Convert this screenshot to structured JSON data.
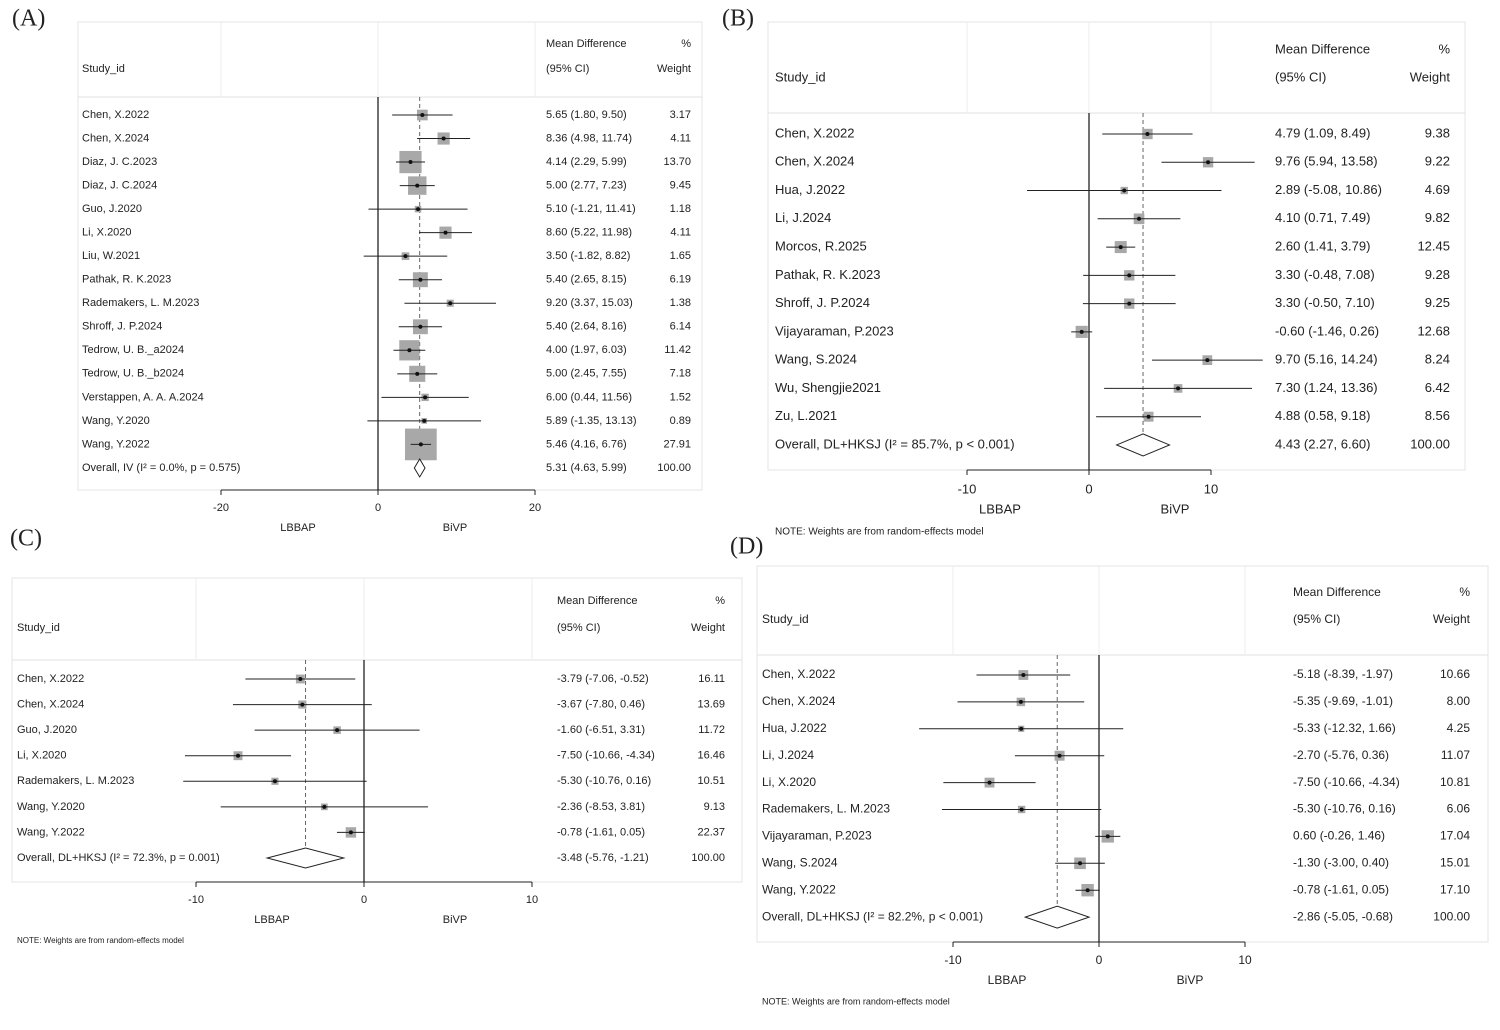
{
  "chart_data": [
    {
      "type": "forest",
      "panel_label": "(A)",
      "study_header": "Study_id",
      "effect_header": "Mean Difference",
      "effect_subheader": "(95% CI)",
      "weight_header": "%",
      "weight_subheader": "Weight",
      "xlim": [
        -20,
        20
      ],
      "xticks": [
        -20,
        0,
        20
      ],
      "left_label": "LBBAP",
      "right_label": "BiVP",
      "studies": [
        {
          "name": "Chen, X.2022",
          "value": 5.65,
          "lower": 1.8,
          "upper": 9.5,
          "ci_label": "5.65 (1.80, 9.50)",
          "weight": 3.17
        },
        {
          "name": "Chen, X.2024",
          "value": 8.36,
          "lower": 4.98,
          "upper": 11.74,
          "ci_label": "8.36 (4.98, 11.74)",
          "weight": 4.11
        },
        {
          "name": "Diaz, J. C.2023",
          "value": 4.14,
          "lower": 2.29,
          "upper": 5.99,
          "ci_label": "4.14 (2.29, 5.99)",
          "weight": 13.7,
          "weight_label": "13.70"
        },
        {
          "name": "Diaz, J. C.2024",
          "value": 5.0,
          "lower": 2.77,
          "upper": 7.23,
          "ci_label": "5.00 (2.77, 7.23)",
          "weight": 9.45
        },
        {
          "name": "Guo, J.2020",
          "value": 5.1,
          "lower": -1.21,
          "upper": 11.41,
          "ci_label": "5.10 (-1.21, 11.41)",
          "weight": 1.18
        },
        {
          "name": "Li, X.2020",
          "value": 8.6,
          "lower": 5.22,
          "upper": 11.98,
          "ci_label": "8.60 (5.22, 11.98)",
          "weight": 4.11
        },
        {
          "name": "Liu, W.2021",
          "value": 3.5,
          "lower": -1.82,
          "upper": 8.82,
          "ci_label": "3.50 (-1.82, 8.82)",
          "weight": 1.65
        },
        {
          "name": "Pathak, R. K.2023",
          "value": 5.4,
          "lower": 2.65,
          "upper": 8.15,
          "ci_label": "5.40 (2.65, 8.15)",
          "weight": 6.19
        },
        {
          "name": "Rademakers, L. M.2023",
          "value": 9.2,
          "lower": 3.37,
          "upper": 15.03,
          "ci_label": "9.20 (3.37, 15.03)",
          "weight": 1.38
        },
        {
          "name": "Shroff, J. P.2024",
          "value": 5.4,
          "lower": 2.64,
          "upper": 8.16,
          "ci_label": "5.40 (2.64, 8.16)",
          "weight": 6.14
        },
        {
          "name": "Tedrow, U. B._a2024",
          "value": 4.0,
          "lower": 1.97,
          "upper": 6.03,
          "ci_label": "4.00 (1.97, 6.03)",
          "weight": 11.42
        },
        {
          "name": "Tedrow, U. B._b2024",
          "value": 5.0,
          "lower": 2.45,
          "upper": 7.55,
          "ci_label": "5.00 (2.45, 7.55)",
          "weight": 7.18
        },
        {
          "name": "Verstappen, A. A. A.2024",
          "value": 6.0,
          "lower": 0.44,
          "upper": 11.56,
          "ci_label": "6.00 (0.44, 11.56)",
          "weight": 1.52
        },
        {
          "name": "Wang, Y.2020",
          "value": 5.89,
          "lower": -1.35,
          "upper": 13.13,
          "ci_label": "5.89 (-1.35, 13.13)",
          "weight": 0.89
        },
        {
          "name": "Wang, Y.2022",
          "value": 5.46,
          "lower": 4.16,
          "upper": 6.76,
          "ci_label": "5.46 (4.16, 6.76)",
          "weight": 27.91
        }
      ],
      "overall": {
        "label": "Overall, IV (I² = 0.0%, p = 0.575)",
        "value": 5.31,
        "lower": 4.63,
        "upper": 5.99,
        "ci_label": "5.31 (4.63, 5.99)",
        "weight": 100,
        "weight_label": "100.00"
      }
    },
    {
      "type": "forest",
      "panel_label": "(B)",
      "study_header": "Study_id",
      "effect_header": "Mean Difference",
      "effect_subheader": "(95% CI)",
      "weight_header": "%",
      "weight_subheader": "Weight",
      "xlim": [
        -10,
        10
      ],
      "xticks": [
        -10,
        0,
        10
      ],
      "left_label": "LBBAP",
      "right_label": "BiVP",
      "note": "NOTE: Weights are from random-effects model",
      "studies": [
        {
          "name": "Chen, X.2022",
          "value": 4.79,
          "lower": 1.09,
          "upper": 8.49,
          "ci_label": "4.79 (1.09, 8.49)",
          "weight": 9.38
        },
        {
          "name": "Chen, X.2024",
          "value": 9.76,
          "lower": 5.94,
          "upper": 13.58,
          "ci_label": "9.76 (5.94, 13.58)",
          "weight": 9.22
        },
        {
          "name": "Hua, J.2022",
          "value": 2.89,
          "lower": -5.08,
          "upper": 10.86,
          "ci_label": "2.89 (-5.08, 10.86)",
          "weight": 4.69
        },
        {
          "name": "Li, J.2024",
          "value": 4.1,
          "lower": 0.71,
          "upper": 7.49,
          "ci_label": "4.10 (0.71, 7.49)",
          "weight": 9.82
        },
        {
          "name": "Morcos, R.2025",
          "value": 2.6,
          "lower": 1.41,
          "upper": 3.79,
          "ci_label": "2.60 (1.41, 3.79)",
          "weight": 12.45
        },
        {
          "name": "Pathak, R. K.2023",
          "value": 3.3,
          "lower": -0.48,
          "upper": 7.08,
          "ci_label": "3.30 (-0.48, 7.08)",
          "weight": 9.28
        },
        {
          "name": "Shroff, J. P.2024",
          "value": 3.3,
          "lower": -0.5,
          "upper": 7.1,
          "ci_label": "3.30 (-0.50, 7.10)",
          "weight": 9.25
        },
        {
          "name": "Vijayaraman, P.2023",
          "value": -0.6,
          "lower": -1.46,
          "upper": 0.26,
          "ci_label": "-0.60 (-1.46, 0.26)",
          "weight": 12.68
        },
        {
          "name": "Wang, S.2024",
          "value": 9.7,
          "lower": 5.16,
          "upper": 14.24,
          "ci_label": "9.70 (5.16, 14.24)",
          "weight": 8.24
        },
        {
          "name": "Wu, Shengjie2021",
          "value": 7.3,
          "lower": 1.24,
          "upper": 13.36,
          "ci_label": "7.30 (1.24, 13.36)",
          "weight": 6.42
        },
        {
          "name": "Zu, L.2021",
          "value": 4.88,
          "lower": 0.58,
          "upper": 9.18,
          "ci_label": "4.88 (0.58, 9.18)",
          "weight": 8.56
        }
      ],
      "overall": {
        "label": "Overall, DL+HKSJ (I² = 85.7%, p < 0.001)",
        "value": 4.43,
        "lower": 2.27,
        "upper": 6.6,
        "ci_label": "4.43 (2.27, 6.60)",
        "weight": 100,
        "weight_label": "100.00"
      }
    },
    {
      "type": "forest",
      "panel_label": "(C)",
      "study_header": "Study_id",
      "effect_header": "Mean Difference",
      "effect_subheader": "(95% CI)",
      "weight_header": "%",
      "weight_subheader": "Weight",
      "xlim": [
        -10,
        10
      ],
      "xticks": [
        -10,
        0,
        10
      ],
      "left_label": "LBBAP",
      "right_label": "BiVP",
      "note": "NOTE: Weights are from random-effects model",
      "studies": [
        {
          "name": "Chen, X.2022",
          "value": -3.79,
          "lower": -7.06,
          "upper": -0.52,
          "ci_label": "-3.79 (-7.06, -0.52)",
          "weight": 16.11
        },
        {
          "name": "Chen, X.2024",
          "value": -3.67,
          "lower": -7.8,
          "upper": 0.46,
          "ci_label": "-3.67 (-7.80, 0.46)",
          "weight": 13.69
        },
        {
          "name": "Guo, J.2020",
          "value": -1.6,
          "lower": -6.51,
          "upper": 3.31,
          "ci_label": "-1.60 (-6.51, 3.31)",
          "weight": 11.72
        },
        {
          "name": "Li, X.2020",
          "value": -7.5,
          "lower": -10.66,
          "upper": -4.34,
          "ci_label": "-7.50 (-10.66, -4.34)",
          "weight": 16.46
        },
        {
          "name": "Rademakers, L. M.2023",
          "value": -5.3,
          "lower": -10.76,
          "upper": 0.16,
          "ci_label": "-5.30 (-10.76, 0.16)",
          "weight": 10.51
        },
        {
          "name": "Wang, Y.2020",
          "value": -2.36,
          "lower": -8.53,
          "upper": 3.81,
          "ci_label": "-2.36 (-8.53, 3.81)",
          "weight": 9.13
        },
        {
          "name": "Wang, Y.2022",
          "value": -0.78,
          "lower": -1.61,
          "upper": 0.05,
          "ci_label": "-0.78 (-1.61, 0.05)",
          "weight": 22.37
        }
      ],
      "overall": {
        "label": "Overall, DL+HKSJ (I² = 72.3%, p = 0.001)",
        "value": -3.48,
        "lower": -5.76,
        "upper": -1.21,
        "ci_label": "-3.48 (-5.76, -1.21)",
        "weight": 100,
        "weight_label": "100.00"
      }
    },
    {
      "type": "forest",
      "panel_label": "(D)",
      "study_header": "Study_id",
      "effect_header": "Mean Difference",
      "effect_subheader": "(95% CI)",
      "weight_header": "%",
      "weight_subheader": "Weight",
      "xlim": [
        -10,
        10
      ],
      "xticks": [
        -10,
        0,
        10
      ],
      "left_label": "LBBAP",
      "right_label": "BiVP",
      "note": "NOTE: Weights are from random-effects model",
      "studies": [
        {
          "name": "Chen, X.2022",
          "value": -5.18,
          "lower": -8.39,
          "upper": -1.97,
          "ci_label": "-5.18 (-8.39, -1.97)",
          "weight": 10.66
        },
        {
          "name": "Chen, X.2024",
          "value": -5.35,
          "lower": -9.69,
          "upper": -1.01,
          "ci_label": "-5.35 (-9.69, -1.01)",
          "weight": 8,
          "weight_label": "8.00"
        },
        {
          "name": "Hua, J.2022",
          "value": -5.33,
          "lower": -12.32,
          "upper": 1.66,
          "ci_label": "-5.33 (-12.32, 1.66)",
          "weight": 4.25
        },
        {
          "name": "Li, J.2024",
          "value": -2.7,
          "lower": -5.76,
          "upper": 0.36,
          "ci_label": "-2.70 (-5.76, 0.36)",
          "weight": 11.07
        },
        {
          "name": "Li, X.2020",
          "value": -7.5,
          "lower": -10.66,
          "upper": -4.34,
          "ci_label": "-7.50 (-10.66, -4.34)",
          "weight": 10.81
        },
        {
          "name": "Rademakers, L. M.2023",
          "value": -5.3,
          "lower": -10.76,
          "upper": 0.16,
          "ci_label": "-5.30 (-10.76, 0.16)",
          "weight": 6.06
        },
        {
          "name": "Vijayaraman, P.2023",
          "value": 0.6,
          "lower": -0.26,
          "upper": 1.46,
          "ci_label": "0.60 (-0.26, 1.46)",
          "weight": 17.04
        },
        {
          "name": "Wang, S.2024",
          "value": -1.3,
          "lower": -3.0,
          "upper": 0.4,
          "ci_label": "-1.30 (-3.00, 0.40)",
          "weight": 15.01
        },
        {
          "name": "Wang, Y.2022",
          "value": -0.78,
          "lower": -1.61,
          "upper": 0.05,
          "ci_label": "-0.78 (-1.61, 0.05)",
          "weight": 17.1,
          "weight_label": "17.10"
        }
      ],
      "overall": {
        "label": "Overall, DL+HKSJ (I² = 82.2%, p < 0.001)",
        "value": -2.86,
        "lower": -5.05,
        "upper": -0.68,
        "ci_label": "-2.86 (-5.05, -0.68)",
        "weight": 100,
        "weight_label": "100.00"
      }
    }
  ]
}
